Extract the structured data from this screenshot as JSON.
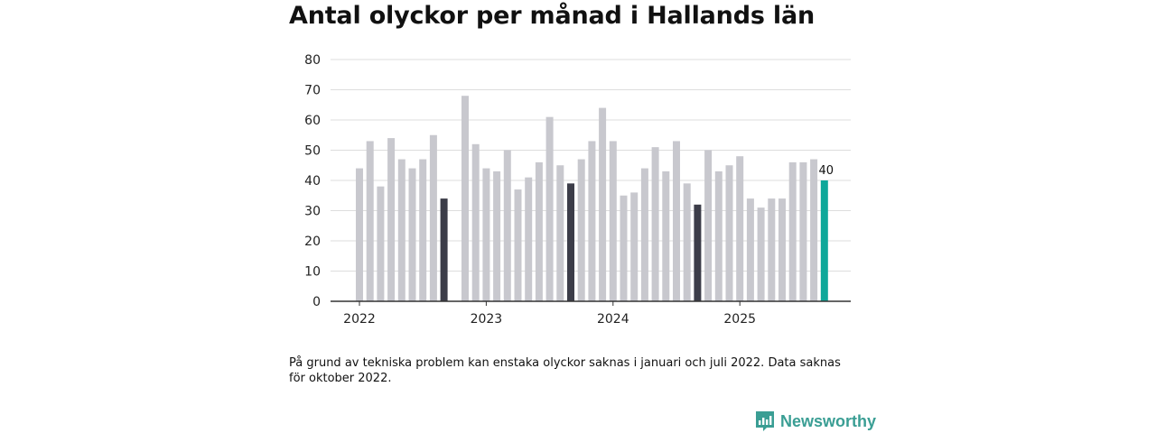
{
  "title": "Antal olyckor per månad i Hallands län",
  "footnote": "På grund av tekniska problem kan enstaka olyckor saknas i januari och juli 2022. Data saknas för oktober 2022.",
  "brand": {
    "name": "Newsworthy",
    "icon": "newsworthy-chart-icon",
    "color": "#3a9e94"
  },
  "colors": {
    "bar": "#c8c8ce",
    "highlight_month": "#3c3d49",
    "latest": "#0fa89a",
    "grid": "#dddddd",
    "axis": "#333333"
  },
  "chart_data": {
    "type": "bar",
    "ylim": [
      0,
      80
    ],
    "yticks": [
      0,
      10,
      20,
      30,
      40,
      50,
      60,
      70,
      80
    ],
    "xticks": [
      "2022",
      "2023",
      "2024",
      "2025"
    ],
    "grid": true,
    "months": [
      "2022-01",
      "2022-02",
      "2022-03",
      "2022-04",
      "2022-05",
      "2022-06",
      "2022-07",
      "2022-08",
      "2022-09",
      "2022-10",
      "2022-11",
      "2022-12",
      "2023-01",
      "2023-02",
      "2023-03",
      "2023-04",
      "2023-05",
      "2023-06",
      "2023-07",
      "2023-08",
      "2023-09",
      "2023-10",
      "2023-11",
      "2023-12",
      "2024-01",
      "2024-02",
      "2024-03",
      "2024-04",
      "2024-05",
      "2024-06",
      "2024-07",
      "2024-08",
      "2024-09",
      "2024-10",
      "2024-11",
      "2024-12",
      "2025-01",
      "2025-02",
      "2025-03",
      "2025-04",
      "2025-05",
      "2025-06",
      "2025-07",
      "2025-08",
      "2025-09"
    ],
    "values": [
      44,
      53,
      38,
      54,
      47,
      44,
      47,
      55,
      34,
      null,
      68,
      52,
      44,
      43,
      50,
      37,
      41,
      46,
      61,
      45,
      39,
      47,
      53,
      64,
      53,
      35,
      36,
      44,
      51,
      43,
      53,
      39,
      32,
      50,
      43,
      45,
      48,
      34,
      31,
      34,
      34,
      46,
      46,
      47,
      40
    ],
    "highlight_months": [
      "2022-09",
      "2023-09",
      "2024-09"
    ],
    "latest": {
      "month": "2025-09",
      "label": "40"
    }
  }
}
